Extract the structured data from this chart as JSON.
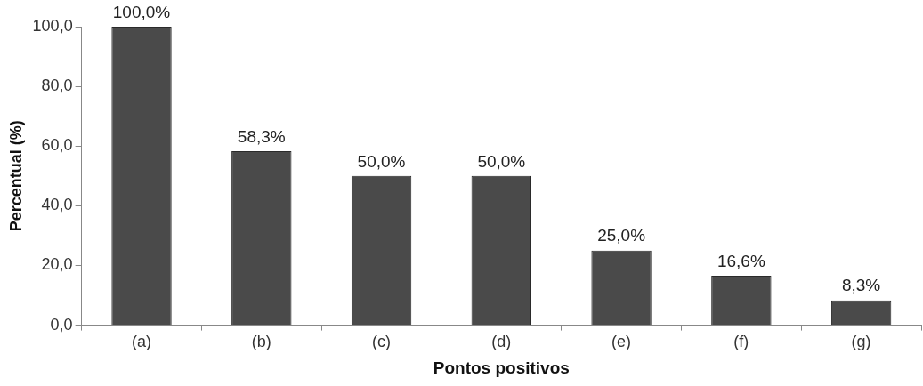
{
  "chart_data": {
    "type": "bar",
    "xlabel": "Pontos positivos",
    "ylabel": "Percentual (%)",
    "categories": [
      "(a)",
      "(b)",
      "(c)",
      "(d)",
      "(e)",
      "(f)",
      "(g)"
    ],
    "values": [
      100.0,
      58.3,
      50.0,
      50.0,
      25.0,
      16.6,
      8.3
    ],
    "value_labels": [
      "100,0%",
      "58,3%",
      "50,0%",
      "50,0%",
      "25,0%",
      "16,6%",
      "8,3%"
    ],
    "color": "#4a4a4a",
    "ylim": [
      0,
      100
    ],
    "yticks": [
      {
        "value": 0,
        "label": "0,0"
      },
      {
        "value": 20,
        "label": "20,0"
      },
      {
        "value": 40,
        "label": "40,0"
      },
      {
        "value": 60,
        "label": "60,0"
      },
      {
        "value": 80,
        "label": "80,0"
      },
      {
        "value": 100,
        "label": "100,0"
      }
    ],
    "grid": false,
    "legend": false
  }
}
